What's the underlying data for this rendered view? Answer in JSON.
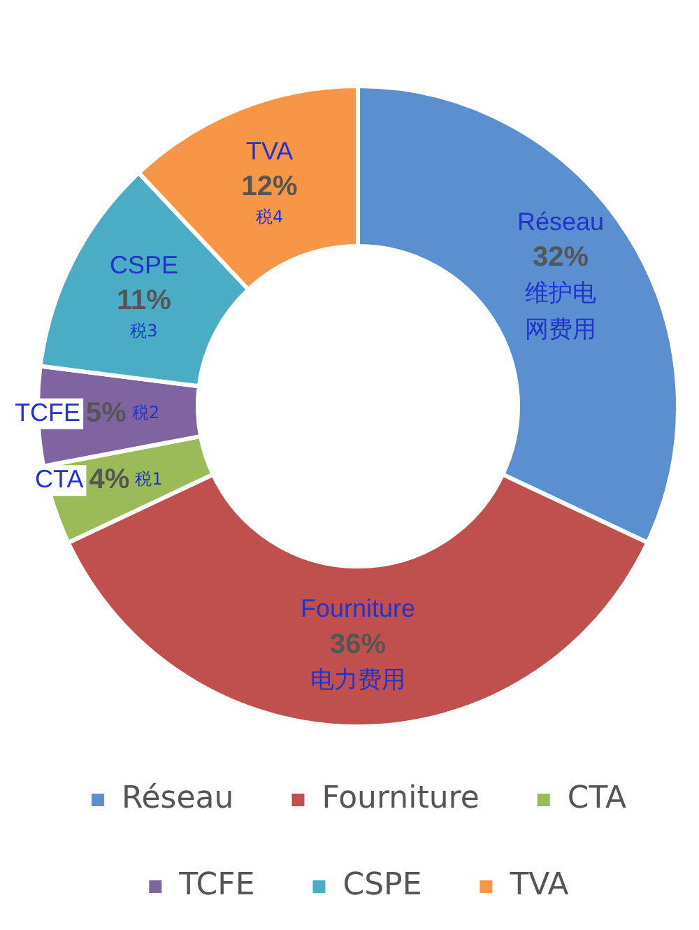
{
  "chart_data": {
    "type": "donut",
    "categories": [
      "Réseau",
      "Fourniture",
      "CTA",
      "TCFE",
      "CSPE",
      "TVA"
    ],
    "values": [
      32,
      36,
      4,
      5,
      11,
      12
    ],
    "colors": [
      "#5a8fd0",
      "#c0504d",
      "#9bbb59",
      "#8064a2",
      "#4bacc6",
      "#f79646"
    ],
    "value_labels": [
      "32%",
      "36%",
      "4%",
      "5%",
      "11%",
      "12%"
    ],
    "annotations": [
      {
        "text": "维护电网费用",
        "x": "Réseau"
      },
      {
        "text": "电力费用",
        "x": "Fourniture"
      },
      {
        "text": "税1",
        "x": "CTA"
      },
      {
        "text": "税2",
        "x": "TCFE"
      },
      {
        "text": "税3",
        "x": "CSPE"
      },
      {
        "text": "税4",
        "x": "TVA"
      }
    ],
    "legend": "bottom"
  }
}
